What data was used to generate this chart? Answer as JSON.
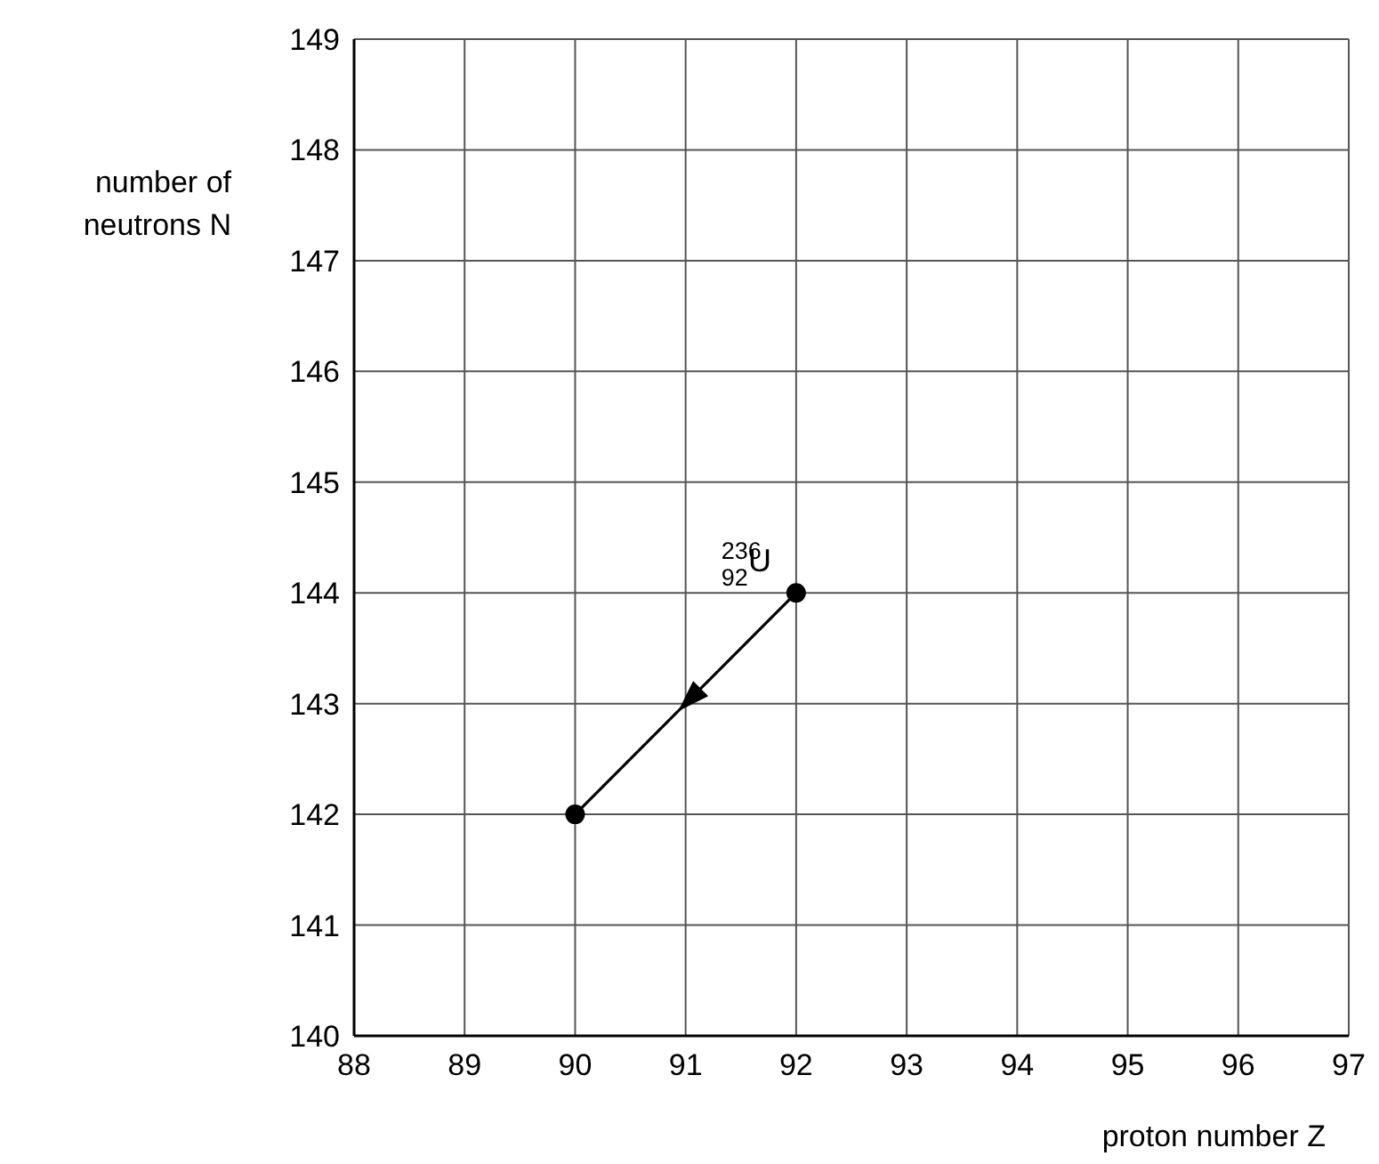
{
  "chart_data": {
    "type": "line",
    "xlabel": "proton number Z",
    "ylabel": "number of neutrons N",
    "xlim": [
      88,
      97
    ],
    "xticks": [
      88,
      89,
      90,
      91,
      92,
      93,
      94,
      95,
      96,
      97
    ],
    "ylim": [
      140,
      149
    ],
    "yticks": [
      140,
      141,
      142,
      143,
      144,
      145,
      146,
      147,
      148,
      149
    ],
    "grid": true,
    "marker": "circle",
    "line_style": "solid",
    "series": [
      {
        "color": "#000000",
        "x": [
          92,
          90
        ],
        "values": [
          144,
          142
        ]
      }
    ],
    "annotations": [
      {
        "text": "$^{236}$$_{92}$U",
        "x": 92,
        "y": 144
      }
    ]
  }
}
